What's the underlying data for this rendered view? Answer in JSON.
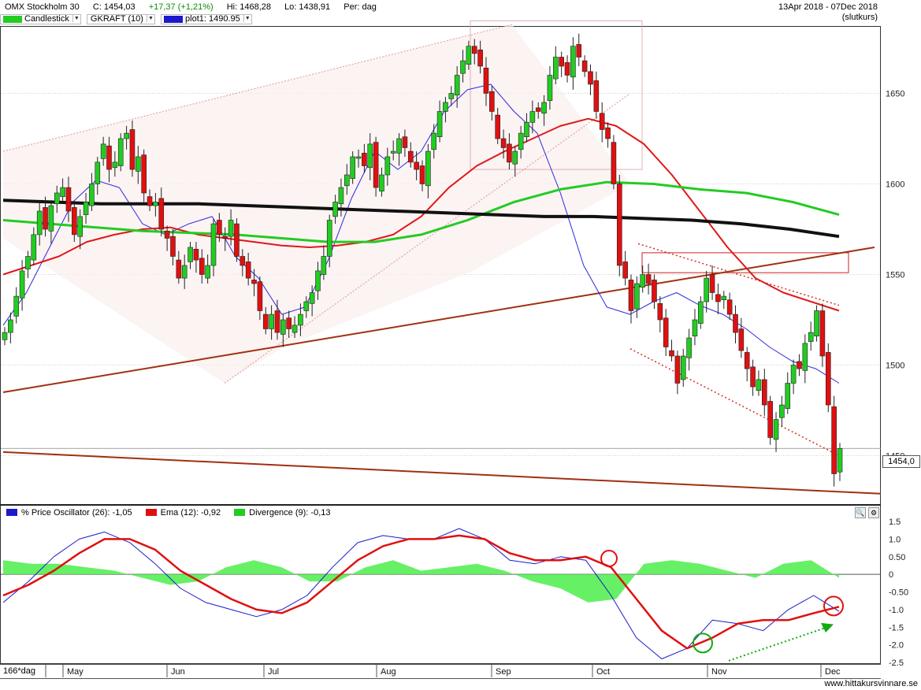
{
  "header": {
    "instrument": "OMX Stockholm 30",
    "close": "C:  1454,03",
    "change": "+17,37 (+1,21%)",
    "high": "Hi:  1468,28",
    "low": "Lo:  1438,91",
    "period": "Per:  dag",
    "date_range": "13Apr 2018 - 07Dec 2018",
    "price_type": "(slutkurs)"
  },
  "legend": [
    {
      "label": "Candlestick",
      "color": "#22cc22"
    },
    {
      "label": "GKRAFT (10)",
      "color": ""
    },
    {
      "label": "plot1: 1490.95",
      "color": "#1a1acc"
    }
  ],
  "price_tag": "1454,0",
  "oscillator_legend": [
    {
      "label": "% Price Oscillator (26): -1,05",
      "color": "#1a1acc"
    },
    {
      "label": "Ema (12): -0,92",
      "color": "#dd1111"
    },
    {
      "label": "Divergence (9): -0,13",
      "color": "#22cc22"
    }
  ],
  "x_axis": {
    "corner_label": "166*dag",
    "months": [
      "May",
      "Jun",
      "Jul",
      "Aug",
      "Sep",
      "Oct",
      "Nov",
      "Dec"
    ]
  },
  "credit": "www.hittakursvinnare.se",
  "chart_data": [
    {
      "type": "candlestick",
      "title": "OMX Stockholm 30",
      "y_ticks": [
        "1650",
        "1600",
        "1550",
        "1500",
        "1450"
      ],
      "ylim": [
        1425,
        1685
      ],
      "grid": true,
      "last_close": 1454.03,
      "series": [
        {
          "name": "Candlestick",
          "close_path": [
            1518,
            1525,
            1538,
            1552,
            1560,
            1572,
            1585,
            1575,
            1588,
            1595,
            1598,
            1585,
            1572,
            1582,
            1590,
            1600,
            1612,
            1622,
            1608,
            1612,
            1625,
            1628,
            1608,
            1615,
            1595,
            1588,
            1590,
            1575,
            1570,
            1560,
            1548,
            1555,
            1565,
            1558,
            1550,
            1555,
            1578,
            1572,
            1570,
            1580,
            1560,
            1555,
            1548,
            1545,
            1530,
            1520,
            1528,
            1518,
            1525,
            1520,
            1522,
            1528,
            1535,
            1540,
            1552,
            1560,
            1580,
            1590,
            1598,
            1605,
            1615,
            1615,
            1610,
            1622,
            1598,
            1605,
            1615,
            1618,
            1625,
            1620,
            1612,
            1608,
            1600,
            1618,
            1628,
            1640,
            1645,
            1650,
            1660,
            1668,
            1676,
            1672,
            1665,
            1650,
            1640,
            1625,
            1620,
            1612,
            1618,
            1628,
            1634,
            1640,
            1640,
            1645,
            1660,
            1670,
            1665,
            1660,
            1676,
            1670,
            1662,
            1655,
            1640,
            1630,
            1625,
            1600,
            1555,
            1548,
            1530,
            1545,
            1550,
            1545,
            1535,
            1525,
            1510,
            1505,
            1490,
            1505,
            1515,
            1525,
            1535,
            1548,
            1540,
            1535,
            1538,
            1528,
            1518,
            1508,
            1498,
            1488,
            1492,
            1478,
            1460,
            1470,
            1478,
            1490,
            1500,
            1498,
            1512,
            1518,
            1530,
            1505,
            1478,
            1440,
            1454
          ]
        },
        {
          "name": "MA 10",
          "values": [
            1522,
            1540,
            1565,
            1590,
            1602,
            1598,
            1578,
            1572,
            1578,
            1582,
            1560,
            1548,
            1528,
            1532,
            1558,
            1592,
            1618,
            1608,
            1618,
            1640,
            1652,
            1655,
            1640,
            1628,
            1595,
            1555,
            1532,
            1528,
            1535,
            1540,
            1533,
            1528,
            1520,
            1510,
            1502,
            1498,
            1490
          ]
        },
        {
          "name": "EMA 20",
          "values": [
            1550,
            1555,
            1560,
            1568,
            1572,
            1575,
            1576,
            1572,
            1570,
            1568,
            1566,
            1565,
            1566,
            1568,
            1572,
            1582,
            1598,
            1610,
            1618,
            1625,
            1632,
            1636,
            1632,
            1622,
            1605,
            1585,
            1565,
            1548,
            1540,
            1535,
            1530
          ]
        },
        {
          "name": "MA 50",
          "values": [
            1580,
            1578,
            1576,
            1574,
            1573,
            1572,
            1570,
            1568,
            1568,
            1572,
            1580,
            1590,
            1597,
            1601,
            1600,
            1597,
            1595,
            1590,
            1583
          ]
        },
        {
          "name": "MA 200",
          "values": [
            1591,
            1590,
            1589,
            1589,
            1589,
            1588,
            1587,
            1586,
            1585,
            1584,
            1583,
            1582,
            1582,
            1581,
            1580,
            1578,
            1575,
            1571
          ]
        }
      ],
      "annotations": [
        "rising channel May–Sep",
        "descending channel Oct–Dec",
        "long-term support lines",
        "resistance box ~1552–1562"
      ]
    },
    {
      "type": "line",
      "title": "% Price Oscillator (26)",
      "y_ticks": [
        "1.5",
        "1.0",
        "0.50",
        "0",
        "-0.50",
        "-1.0",
        "-1.5",
        "-2.0",
        "-2.5"
      ],
      "ylim": [
        -2.5,
        1.5
      ],
      "series": [
        {
          "name": "% Price Oscillator (26)",
          "last": -1.05,
          "values": [
            -0.8,
            -0.2,
            0.5,
            1.0,
            1.2,
            0.9,
            0.3,
            -0.4,
            -0.8,
            -1.0,
            -1.2,
            -1.0,
            -0.6,
            0.2,
            0.9,
            1.1,
            1.0,
            1.0,
            1.3,
            1.0,
            0.4,
            0.3,
            0.5,
            0.4,
            -0.6,
            -1.8,
            -2.4,
            -2.1,
            -1.3,
            -1.4,
            -1.6,
            -1.0,
            -0.6,
            -1.05
          ]
        },
        {
          "name": "Ema (12)",
          "last": -0.92,
          "values": [
            -0.6,
            -0.3,
            0.1,
            0.6,
            1.0,
            1.0,
            0.7,
            0.1,
            -0.3,
            -0.7,
            -1.0,
            -1.1,
            -0.8,
            -0.2,
            0.4,
            0.8,
            1.0,
            1.0,
            1.1,
            1.0,
            0.6,
            0.4,
            0.4,
            0.5,
            0.2,
            -0.7,
            -1.6,
            -2.1,
            -1.8,
            -1.4,
            -1.3,
            -1.3,
            -1.1,
            -0.92
          ]
        },
        {
          "name": "Divergence (9)",
          "last": -0.13,
          "values": [
            0.4,
            0.3,
            0.3,
            0.2,
            0.1,
            -0.1,
            -0.3,
            -0.2,
            0.2,
            0.4,
            0.2,
            -0.2,
            -0.2,
            0.2,
            0.4,
            0.1,
            0.2,
            0.3,
            0.1,
            -0.2,
            -0.4,
            -0.8,
            -0.7,
            0.3,
            0.4,
            0.3,
            0.1,
            -0.1,
            0.3,
            0.4,
            -0.1
          ]
        }
      ],
      "annotations": [
        "bearish cross early Oct",
        "bullish cross late Oct",
        "bearish cross Dec",
        "rising lows (green arrow)"
      ]
    }
  ]
}
